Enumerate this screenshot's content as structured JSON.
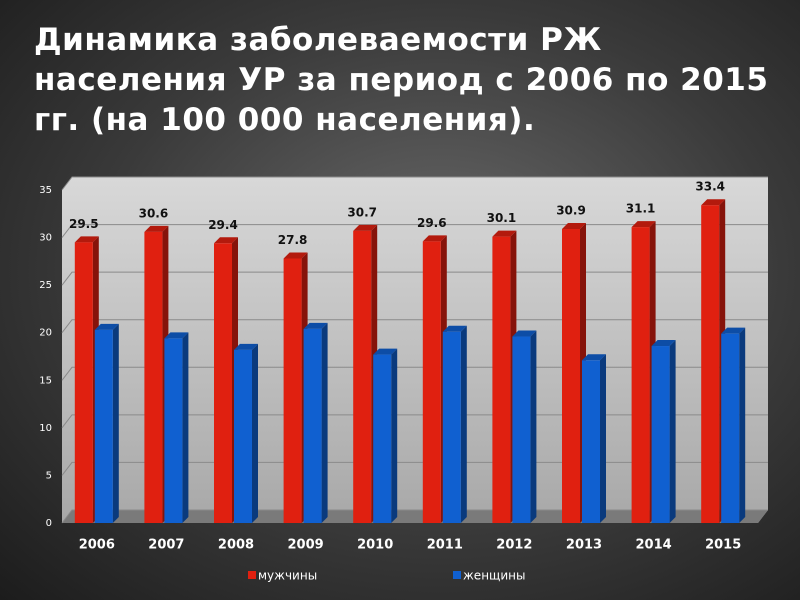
{
  "chart_data": {
    "type": "bar",
    "title": "Динамика заболеваемости РЖ населения УР за период с 2006 по 2015 гг. (на 100 000 населения).",
    "categories": [
      "2006",
      "2007",
      "2008",
      "2009",
      "2010",
      "2011",
      "2012",
      "2013",
      "2014",
      "2015"
    ],
    "series": [
      {
        "name": "мужчины",
        "color": "#e02010",
        "values": [
          29.5,
          30.6,
          29.4,
          27.8,
          30.7,
          29.6,
          30.1,
          30.9,
          31.1,
          33.4
        ]
      },
      {
        "name": "женщины",
        "color": "#1060d0",
        "values": [
          20.3,
          19.4,
          18.2,
          20.4,
          17.7,
          20.1,
          19.6,
          17.1,
          18.6,
          19.9
        ]
      }
    ],
    "ylim": [
      0,
      35
    ],
    "yticks": [
      0,
      5,
      10,
      15,
      20,
      25,
      30,
      35
    ],
    "grid": true,
    "value_labels_series": 0
  }
}
